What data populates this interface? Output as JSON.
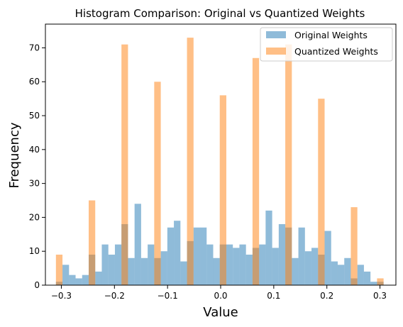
{
  "chart_data": {
    "type": "bar",
    "title": "Histogram Comparison: Original vs Quantized Weights",
    "xlabel": "Value",
    "ylabel": "Frequency",
    "xlim": [
      -0.33,
      0.33
    ],
    "ylim": [
      0,
      77
    ],
    "xticks": [
      -0.3,
      -0.2,
      -0.1,
      0.0,
      0.1,
      0.2,
      0.3
    ],
    "xtick_labels": [
      "−0.3",
      "−0.2",
      "−0.1",
      "0.0",
      "0.1",
      "0.2",
      "0.3"
    ],
    "yticks": [
      0,
      10,
      20,
      30,
      40,
      50,
      60,
      70
    ],
    "yticks_labels": [
      "0",
      "10",
      "20",
      "30",
      "40",
      "50",
      "60",
      "70"
    ],
    "grid": false,
    "legend_position": "top-right",
    "series": [
      {
        "name": "Original Weights",
        "color": "#1f77b4",
        "opacity": 0.5,
        "bin_start": -0.3102,
        "bin_width": 0.01234,
        "values": [
          1,
          6,
          3,
          2,
          3,
          9,
          4,
          12,
          9,
          12,
          18,
          8,
          24,
          8,
          12,
          8,
          10,
          17,
          19,
          7,
          13,
          17,
          17,
          12,
          8,
          12,
          12,
          11,
          12,
          9,
          11,
          12,
          22,
          11,
          18,
          17,
          8,
          17,
          10,
          11,
          9,
          16,
          7,
          6,
          8,
          2,
          6,
          4,
          1,
          1
        ]
      },
      {
        "name": "Quantized Weights",
        "color": "#ff7f0e",
        "opacity": 0.5,
        "bin_start": -0.3102,
        "bin_width": 0.01234,
        "values": [
          9,
          0,
          0,
          0,
          0,
          25,
          0,
          0,
          0,
          0,
          71,
          0,
          0,
          0,
          0,
          60,
          0,
          0,
          0,
          0,
          73,
          0,
          0,
          0,
          0,
          56,
          0,
          0,
          0,
          0,
          67,
          0,
          0,
          0,
          0,
          71,
          0,
          0,
          0,
          0,
          55,
          0,
          0,
          0,
          0,
          23,
          0,
          0,
          0,
          2
        ]
      }
    ]
  }
}
